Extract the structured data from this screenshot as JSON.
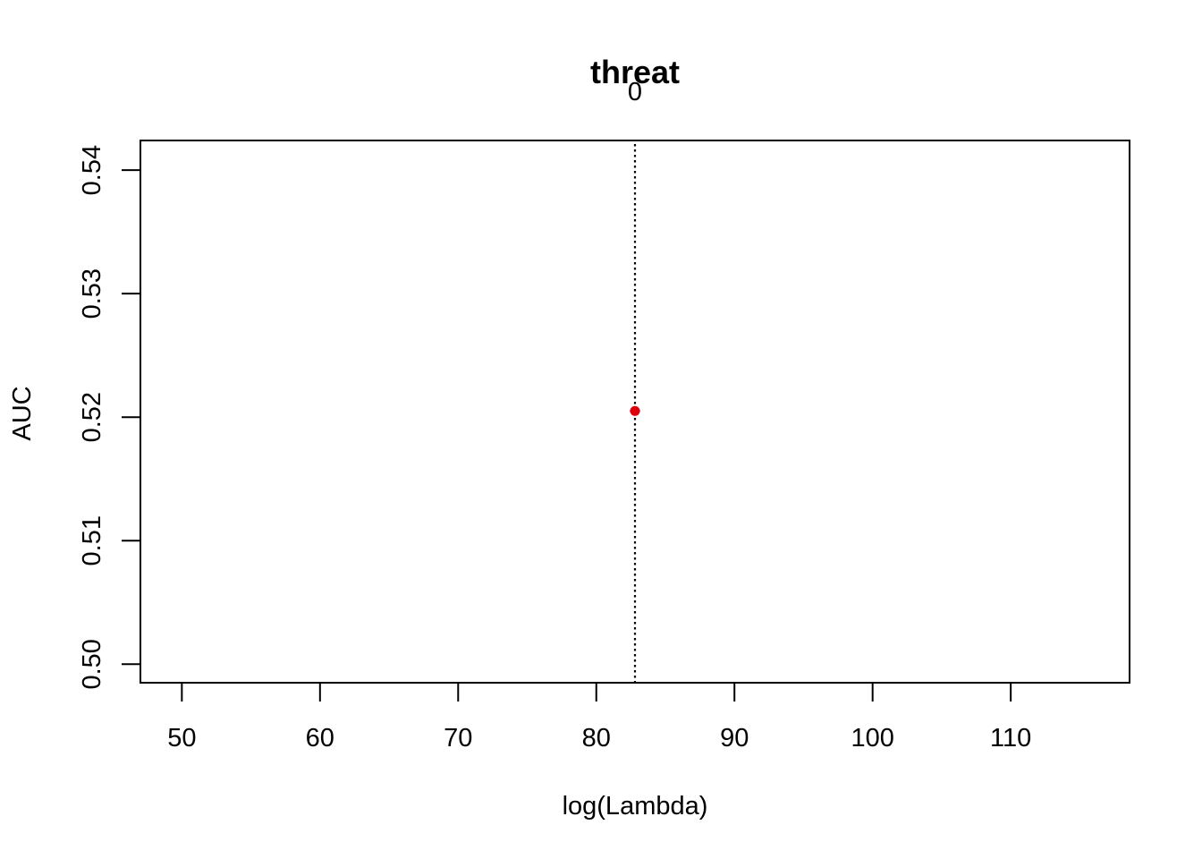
{
  "chart_data": {
    "type": "scatter",
    "title": "threat",
    "top_axis_labels": [
      "0"
    ],
    "xlabel": "log(Lambda)",
    "ylabel": "AUC",
    "xlim": [
      47,
      118.6
    ],
    "ylim": [
      0.4985,
      0.5424
    ],
    "x_ticks": [
      50,
      60,
      70,
      80,
      90,
      100,
      110
    ],
    "x_tick_labels": [
      "50",
      "60",
      "70",
      "80",
      "90",
      "100",
      "110"
    ],
    "y_ticks": [
      0.5,
      0.51,
      0.52,
      0.53,
      0.54
    ],
    "y_tick_labels": [
      "0.50",
      "0.51",
      "0.52",
      "0.53",
      "0.54"
    ],
    "grid": false,
    "points": [
      {
        "x": 82.8,
        "y": 0.5205
      }
    ],
    "error_bars": [
      {
        "x": 82.8,
        "lower": 0.5205,
        "upper": 0.5205
      }
    ],
    "vlines": [
      {
        "x": 82.8,
        "style": "dotted"
      }
    ],
    "colors": {
      "point": "#e0000b",
      "error_bar": "#9a9a9a",
      "axis": "#000000",
      "vline": "#000000"
    }
  }
}
